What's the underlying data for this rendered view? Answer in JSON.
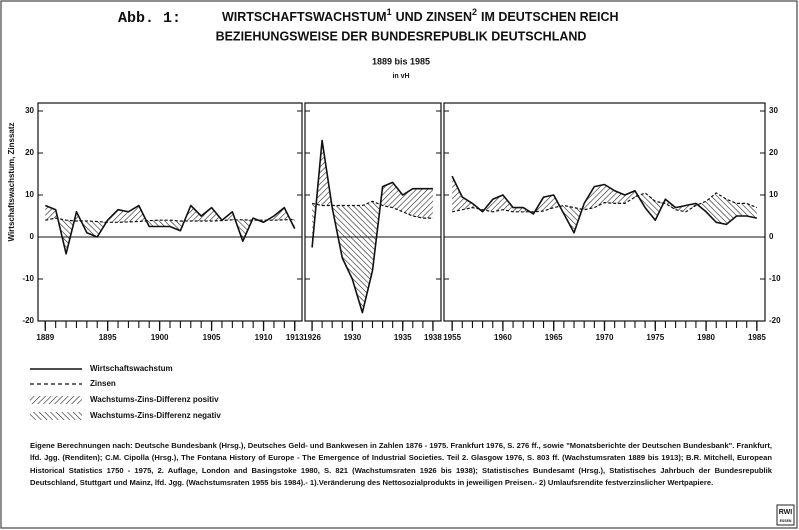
{
  "figure": {
    "title_prefix": "Abb.  1:",
    "title": [
      "WIRTSCHAFTSWACHSTUM",
      "1",
      "UND ZINSEN",
      "2",
      "IM DEUTSCHEN REICH"
    ],
    "title_line2": "BEZIEHUNGSWEISE DER BUNDESREPUBLIK DEUTSCHLAND",
    "period": "1889 bis 1985",
    "unit": "in vH",
    "ylabel": "Wirtschaftswachstum, Zinssatz",
    "legend_positive": "Wachstums-Zins-Differenz positiv",
    "legend_negative": "Wachstums-Zins-Differenz negativ",
    "note": "Eigene Berechnungen nach: Deutsche Bundesbank (Hrsg.), Deutsches Geld- und Bankwesen in Zahlen 1876 - 1975. Frankfurt 1976, S. 276 ff., sowie \"Monatsberichte der Deutschen Bundesbank\". Frankfurt, lfd. Jgg. (Renditen); C.M. Cipolla (Hrsg.), The Fontana History of Europe - The Emergence of Industrial Societies. Teil 2. Glasgow 1976, S. 803 ff. (Wachstumsraten 1889 bis 1913); B.R. Mitchell, European Historical Statistics 1750 - 1975, 2. Auflage, London and Basingstoke 1980, S. 821 (Wachstumsraten 1926 bis 1938); Statistisches Bundesamt (Hrsg.), Statistisches Jahrbuch der Bundesrepublik Deutschland, Stuttgart und Mainz, lfd. Jgg. (Wachstumsraten 1955 bis 1984).- 1).Veränderung des Nettosozialprodukts in jeweiligen Preisen.- 2) Umlaufsrendite festverzinslicher Wertpapiere.",
    "logo": [
      "RWI",
      "ESSEN"
    ]
  },
  "chart_data": [
    {
      "type": "line",
      "x": [
        1889,
        1890,
        1891,
        1892,
        1893,
        1894,
        1895,
        1896,
        1897,
        1898,
        1899,
        1900,
        1901,
        1902,
        1903,
        1904,
        1905,
        1906,
        1907,
        1908,
        1909,
        1910,
        1911,
        1912,
        1913
      ],
      "xlim": [
        1888.3,
        1913.7
      ],
      "xticks": [
        1889,
        1895,
        1900,
        1905,
        1910,
        1913
      ],
      "ylim": [
        -20,
        30
      ],
      "yticks": [
        -20,
        -10,
        0,
        10,
        20,
        30
      ],
      "series": [
        {
          "name": "Wirtschaftswachstum",
          "color": "#111111",
          "values": [
            7.5,
            6.5,
            -4,
            6,
            1,
            0,
            4,
            6.5,
            6,
            7.5,
            2.5,
            2.5,
            2.5,
            1.5,
            7.5,
            5,
            7,
            4,
            6,
            -1,
            4.5,
            3.5,
            5,
            7,
            2
          ]
        },
        {
          "name": "Zinsen",
          "color": "#111111",
          "values": [
            4,
            4.5,
            4,
            3.8,
            3.8,
            3.7,
            3.5,
            3.5,
            3.6,
            3.7,
            3.9,
            4,
            4,
            3.8,
            3.8,
            3.8,
            3.8,
            3.9,
            4.1,
            4.1,
            4,
            4,
            4,
            4.1,
            4.2
          ]
        }
      ]
    },
    {
      "type": "line",
      "x": [
        1926,
        1927,
        1928,
        1929,
        1930,
        1931,
        1932,
        1933,
        1934,
        1935,
        1936,
        1937,
        1938
      ],
      "xlim": [
        1925.3,
        1938.8
      ],
      "xticks": [
        1926,
        1930,
        1935,
        1938
      ],
      "ylim": [
        -20,
        30
      ],
      "yticks": [
        -20,
        -10,
        0,
        10,
        20,
        30
      ],
      "series": [
        {
          "name": "Wirtschaftswachstum",
          "color": "#111111",
          "values": [
            -2.5,
            23,
            7,
            -5,
            -10,
            -18,
            -8,
            12,
            13,
            10,
            11.5,
            11.5,
            11.5
          ]
        },
        {
          "name": "Zinsen",
          "color": "#111111",
          "values": [
            8,
            7.5,
            7.5,
            7.5,
            7.5,
            7.5,
            8.5,
            7.5,
            7,
            6,
            5,
            4.5,
            4.5
          ]
        }
      ]
    },
    {
      "type": "line",
      "x": [
        1955,
        1956,
        1957,
        1958,
        1959,
        1960,
        1961,
        1962,
        1963,
        1964,
        1965,
        1966,
        1967,
        1968,
        1969,
        1970,
        1971,
        1972,
        1973,
        1974,
        1975,
        1976,
        1977,
        1978,
        1979,
        1980,
        1981,
        1982,
        1983,
        1984,
        1985
      ],
      "xlim": [
        1954.2,
        1985.8
      ],
      "xticks": [
        1955,
        1960,
        1965,
        1970,
        1975,
        1980,
        1985
      ],
      "ylim": [
        -20,
        30
      ],
      "yticks": [
        -20,
        -10,
        0,
        10,
        20,
        30
      ],
      "series": [
        {
          "name": "Wirtschaftswachstum",
          "color": "#111111",
          "values": [
            14.5,
            9.5,
            8,
            6,
            9,
            10,
            7,
            7,
            5.5,
            9.5,
            10,
            5.5,
            1,
            8,
            12,
            12.5,
            11,
            10,
            11,
            7,
            4,
            9,
            7,
            7.5,
            8,
            6,
            3.5,
            3,
            5,
            5,
            4.5
          ]
        },
        {
          "name": "Zinsen",
          "color": "#111111",
          "values": [
            6,
            6.5,
            7,
            6.5,
            6,
            6.5,
            6,
            6,
            6,
            6.2,
            7,
            7.5,
            7,
            6.5,
            7,
            8.2,
            8,
            8,
            9.5,
            10.5,
            8.5,
            8,
            6.5,
            6,
            7.5,
            8.5,
            10.5,
            9,
            8,
            8,
            7
          ]
        }
      ]
    }
  ]
}
